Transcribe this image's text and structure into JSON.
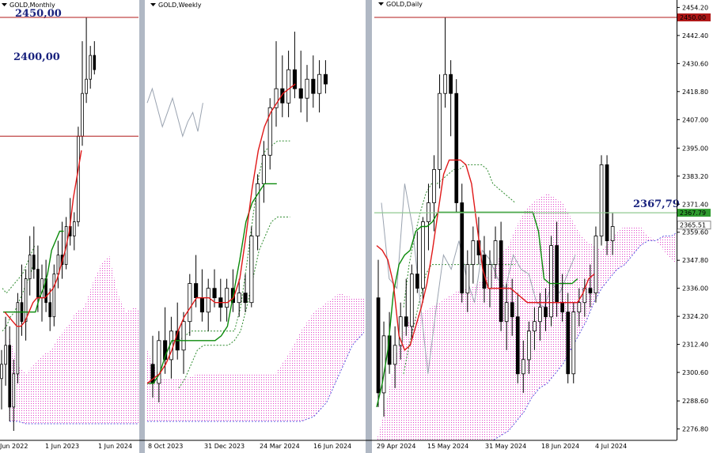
{
  "chart_data": [
    {
      "type": "candlestick",
      "title": "GOLD,Monthly",
      "x_ticks": [
        "Jun 2022",
        "1 Jun 2023",
        "1 Jun 2024"
      ],
      "ylim": [
        2272,
        2456
      ],
      "levels": [
        {
          "label": "2450,00",
          "value": 2450
        },
        {
          "label": "2400,00",
          "value": 2400
        }
      ],
      "candles": [
        {
          "o": 2298,
          "h": 2310,
          "l": 2285,
          "c": 2304
        },
        {
          "o": 2304,
          "h": 2324,
          "l": 2295,
          "c": 2312
        },
        {
          "o": 2312,
          "h": 2320,
          "l": 2280,
          "c": 2286
        },
        {
          "o": 2286,
          "h": 2306,
          "l": 2276,
          "c": 2300
        },
        {
          "o": 2300,
          "h": 2334,
          "l": 2296,
          "c": 2330
        },
        {
          "o": 2330,
          "h": 2346,
          "l": 2316,
          "c": 2322
        },
        {
          "o": 2322,
          "h": 2344,
          "l": 2314,
          "c": 2340
        },
        {
          "o": 2340,
          "h": 2358,
          "l": 2333,
          "c": 2350
        },
        {
          "o": 2350,
          "h": 2362,
          "l": 2340,
          "c": 2344
        },
        {
          "o": 2344,
          "h": 2354,
          "l": 2326,
          "c": 2332
        },
        {
          "o": 2332,
          "h": 2346,
          "l": 2322,
          "c": 2340
        },
        {
          "o": 2340,
          "h": 2348,
          "l": 2326,
          "c": 2330
        },
        {
          "o": 2330,
          "h": 2336,
          "l": 2318,
          "c": 2324
        },
        {
          "o": 2324,
          "h": 2346,
          "l": 2320,
          "c": 2342
        },
        {
          "o": 2342,
          "h": 2356,
          "l": 2336,
          "c": 2350
        },
        {
          "o": 2350,
          "h": 2364,
          "l": 2340,
          "c": 2346
        },
        {
          "o": 2346,
          "h": 2366,
          "l": 2344,
          "c": 2362
        },
        {
          "o": 2362,
          "h": 2374,
          "l": 2354,
          "c": 2358
        },
        {
          "o": 2358,
          "h": 2368,
          "l": 2352,
          "c": 2364
        },
        {
          "o": 2364,
          "h": 2404,
          "l": 2362,
          "c": 2400
        },
        {
          "o": 2400,
          "h": 2440,
          "l": 2396,
          "c": 2418
        },
        {
          "o": 2418,
          "h": 2450,
          "l": 2414,
          "c": 2424
        },
        {
          "o": 2424,
          "h": 2438,
          "l": 2420,
          "c": 2434
        },
        {
          "o": 2434,
          "h": 2440,
          "l": 2426,
          "c": 2428
        }
      ],
      "tenkan": [
        2326,
        2324,
        2322,
        2320,
        2320,
        2322,
        2326,
        2330,
        2332,
        2332,
        2332,
        2334,
        2336,
        2340,
        2346,
        2352,
        2360,
        2374,
        2384,
        2394
      ],
      "kijun": [
        2326,
        2326,
        2326,
        2326,
        2326,
        2326,
        2326,
        2326,
        2326,
        2332,
        2336,
        2342,
        2352,
        2356,
        2360,
        2360
      ],
      "chikou": [
        2360,
        2370,
        2380,
        2374,
        2364,
        2350,
        2346,
        2350,
        2342,
        2344,
        2340,
        2346,
        2350,
        2352,
        2346
      ],
      "lower_band": [
        2318,
        2320,
        2324,
        2326,
        2330,
        2334,
        2338,
        2342,
        2348
      ],
      "upper_band": [
        2336,
        2334,
        2336,
        2338,
        2340,
        2342,
        2346,
        2350,
        2354
      ],
      "cloud_top": [
        2316,
        2304,
        2300,
        2304,
        2308,
        2310,
        2316,
        2320,
        2326,
        2328,
        2338,
        2346,
        2350,
        2334,
        2326,
        2328,
        2326
      ],
      "cloud_bottom": [
        2280,
        2280,
        2279,
        2279,
        2279,
        2279,
        2279,
        2279,
        2279,
        2279,
        2279,
        2279,
        2279,
        2279,
        2279,
        2279,
        2279
      ]
    },
    {
      "type": "candlestick",
      "title": "GOLD,Weekly",
      "x_ticks": [
        "8 Oct 2023",
        "31 Dec 2023",
        "24 Mar 2024",
        "16 Jun 2024"
      ],
      "ylim": [
        2272,
        2456
      ],
      "candles": [
        {
          "o": 2304,
          "h": 2316,
          "l": 2290,
          "c": 2296
        },
        {
          "o": 2296,
          "h": 2318,
          "l": 2288,
          "c": 2314
        },
        {
          "o": 2314,
          "h": 2328,
          "l": 2300,
          "c": 2306
        },
        {
          "o": 2306,
          "h": 2324,
          "l": 2298,
          "c": 2318
        },
        {
          "o": 2318,
          "h": 2330,
          "l": 2306,
          "c": 2310
        },
        {
          "o": 2310,
          "h": 2326,
          "l": 2300,
          "c": 2322
        },
        {
          "o": 2322,
          "h": 2342,
          "l": 2316,
          "c": 2338
        },
        {
          "o": 2338,
          "h": 2350,
          "l": 2328,
          "c": 2332
        },
        {
          "o": 2332,
          "h": 2344,
          "l": 2322,
          "c": 2326
        },
        {
          "o": 2326,
          "h": 2340,
          "l": 2318,
          "c": 2336
        },
        {
          "o": 2336,
          "h": 2344,
          "l": 2328,
          "c": 2332
        },
        {
          "o": 2332,
          "h": 2340,
          "l": 2322,
          "c": 2328
        },
        {
          "o": 2328,
          "h": 2340,
          "l": 2322,
          "c": 2336
        },
        {
          "o": 2336,
          "h": 2344,
          "l": 2326,
          "c": 2330
        },
        {
          "o": 2330,
          "h": 2340,
          "l": 2324,
          "c": 2334
        },
        {
          "o": 2334,
          "h": 2342,
          "l": 2326,
          "c": 2330
        },
        {
          "o": 2330,
          "h": 2362,
          "l": 2328,
          "c": 2358
        },
        {
          "o": 2358,
          "h": 2384,
          "l": 2352,
          "c": 2380
        },
        {
          "o": 2380,
          "h": 2398,
          "l": 2372,
          "c": 2392
        },
        {
          "o": 2392,
          "h": 2416,
          "l": 2386,
          "c": 2412
        },
        {
          "o": 2412,
          "h": 2440,
          "l": 2404,
          "c": 2420
        },
        {
          "o": 2420,
          "h": 2434,
          "l": 2408,
          "c": 2414
        },
        {
          "o": 2414,
          "h": 2436,
          "l": 2408,
          "c": 2428
        },
        {
          "o": 2428,
          "h": 2444,
          "l": 2416,
          "c": 2420
        },
        {
          "o": 2420,
          "h": 2436,
          "l": 2410,
          "c": 2416
        },
        {
          "o": 2416,
          "h": 2430,
          "l": 2406,
          "c": 2424
        },
        {
          "o": 2424,
          "h": 2434,
          "l": 2412,
          "c": 2418
        },
        {
          "o": 2418,
          "h": 2432,
          "l": 2410,
          "c": 2426
        },
        {
          "o": 2426,
          "h": 2432,
          "l": 2418,
          "c": 2422
        }
      ],
      "tenkan": [
        2296,
        2298,
        2300,
        2304,
        2310,
        2318,
        2324,
        2328,
        2332,
        2332,
        2332,
        2330,
        2330,
        2330,
        2332,
        2340,
        2358,
        2378,
        2394,
        2404,
        2410,
        2414,
        2418,
        2420,
        2422
      ],
      "kijun": [
        2296,
        2296,
        2300,
        2308,
        2314,
        2314,
        2314,
        2314,
        2314,
        2314,
        2314,
        2314,
        2316,
        2320,
        2334,
        2348,
        2364,
        2372,
        2376,
        2380,
        2380,
        2380
      ],
      "chikou": [
        2414,
        2420,
        2412,
        2404,
        2410,
        2416,
        2408,
        2400,
        2406,
        2410,
        2402,
        2414
      ],
      "lower_band": [
        2294,
        2298,
        2304,
        2310,
        2312,
        2312,
        2312,
        2312,
        2312,
        2314,
        2318,
        2328,
        2340,
        2352,
        2358,
        2364,
        2366,
        2366,
        2366
      ],
      "upper_band": [
        2314,
        2316,
        2318,
        2318,
        2318,
        2318,
        2318,
        2318,
        2318,
        2318,
        2328,
        2346,
        2366,
        2384,
        2394,
        2396,
        2398,
        2398,
        2398
      ],
      "cloud_top": [
        2310,
        2298,
        2298,
        2298,
        2300,
        2300,
        2300,
        2300,
        2300,
        2300,
        2300,
        2308,
        2318,
        2326,
        2330,
        2334,
        2332,
        2332
      ],
      "cloud_bottom": [
        2280,
        2280,
        2280,
        2280,
        2280,
        2280,
        2280,
        2280,
        2280,
        2280,
        2280,
        2280,
        2280,
        2282,
        2288,
        2300,
        2312,
        2318
      ]
    },
    {
      "type": "candlestick",
      "title": "GOLD,Daily",
      "x_ticks": [
        "29 Apr 2024",
        "15 May 2024",
        "31 May 2024",
        "18 Jun 2024",
        "4 Jul 2024"
      ],
      "y_ticks": [
        "2454.20",
        "2442.40",
        "2430.60",
        "2418.80",
        "2407.00",
        "2395.00",
        "2383.20",
        "2371.40",
        "2359.60",
        "2347.80",
        "2336.00",
        "2324.20",
        "2312.40",
        "2300.60",
        "2288.60",
        "2276.80"
      ],
      "ylim": [
        2272,
        2456
      ],
      "levels": [
        {
          "label": "2450.00",
          "value": 2450
        },
        {
          "label": "2367,79",
          "value": 2367.79
        }
      ],
      "price_tags": [
        "2367.79",
        "2365.51"
      ],
      "candles": [
        {
          "o": 2332,
          "h": 2348,
          "l": 2286,
          "c": 2292
        },
        {
          "o": 2292,
          "h": 2322,
          "l": 2282,
          "c": 2316
        },
        {
          "o": 2316,
          "h": 2326,
          "l": 2300,
          "c": 2304
        },
        {
          "o": 2304,
          "h": 2320,
          "l": 2294,
          "c": 2312
        },
        {
          "o": 2312,
          "h": 2330,
          "l": 2306,
          "c": 2324
        },
        {
          "o": 2324,
          "h": 2340,
          "l": 2316,
          "c": 2320
        },
        {
          "o": 2320,
          "h": 2346,
          "l": 2314,
          "c": 2342
        },
        {
          "o": 2342,
          "h": 2360,
          "l": 2334,
          "c": 2336
        },
        {
          "o": 2336,
          "h": 2366,
          "l": 2330,
          "c": 2364
        },
        {
          "o": 2364,
          "h": 2380,
          "l": 2352,
          "c": 2372
        },
        {
          "o": 2372,
          "h": 2392,
          "l": 2360,
          "c": 2386
        },
        {
          "o": 2386,
          "h": 2426,
          "l": 2378,
          "c": 2418
        },
        {
          "o": 2418,
          "h": 2450,
          "l": 2412,
          "c": 2426
        },
        {
          "o": 2426,
          "h": 2432,
          "l": 2400,
          "c": 2418
        },
        {
          "o": 2418,
          "h": 2424,
          "l": 2368,
          "c": 2372
        },
        {
          "o": 2372,
          "h": 2380,
          "l": 2330,
          "c": 2334
        },
        {
          "o": 2334,
          "h": 2352,
          "l": 2326,
          "c": 2346
        },
        {
          "o": 2346,
          "h": 2362,
          "l": 2338,
          "c": 2356
        },
        {
          "o": 2356,
          "h": 2366,
          "l": 2346,
          "c": 2350
        },
        {
          "o": 2350,
          "h": 2358,
          "l": 2330,
          "c": 2336
        },
        {
          "o": 2336,
          "h": 2352,
          "l": 2328,
          "c": 2346
        },
        {
          "o": 2346,
          "h": 2362,
          "l": 2340,
          "c": 2356
        },
        {
          "o": 2356,
          "h": 2364,
          "l": 2318,
          "c": 2322
        },
        {
          "o": 2322,
          "h": 2338,
          "l": 2310,
          "c": 2330
        },
        {
          "o": 2330,
          "h": 2340,
          "l": 2316,
          "c": 2324
        },
        {
          "o": 2324,
          "h": 2334,
          "l": 2296,
          "c": 2300
        },
        {
          "o": 2300,
          "h": 2314,
          "l": 2292,
          "c": 2306
        },
        {
          "o": 2306,
          "h": 2322,
          "l": 2300,
          "c": 2318
        },
        {
          "o": 2318,
          "h": 2328,
          "l": 2310,
          "c": 2322
        },
        {
          "o": 2322,
          "h": 2334,
          "l": 2314,
          "c": 2328
        },
        {
          "o": 2328,
          "h": 2336,
          "l": 2318,
          "c": 2324
        },
        {
          "o": 2324,
          "h": 2358,
          "l": 2320,
          "c": 2354
        },
        {
          "o": 2354,
          "h": 2364,
          "l": 2324,
          "c": 2330
        },
        {
          "o": 2330,
          "h": 2342,
          "l": 2322,
          "c": 2326
        },
        {
          "o": 2326,
          "h": 2334,
          "l": 2296,
          "c": 2300
        },
        {
          "o": 2300,
          "h": 2330,
          "l": 2296,
          "c": 2326
        },
        {
          "o": 2326,
          "h": 2336,
          "l": 2320,
          "c": 2330
        },
        {
          "o": 2330,
          "h": 2340,
          "l": 2324,
          "c": 2336
        },
        {
          "o": 2336,
          "h": 2346,
          "l": 2328,
          "c": 2334
        },
        {
          "o": 2334,
          "h": 2362,
          "l": 2330,
          "c": 2358
        },
        {
          "o": 2358,
          "h": 2392,
          "l": 2354,
          "c": 2388
        },
        {
          "o": 2388,
          "h": 2392,
          "l": 2350,
          "c": 2356
        },
        {
          "o": 2356,
          "h": 2368,
          "l": 2350,
          "c": 2362
        }
      ],
      "tenkan": [
        2354,
        2352,
        2348,
        2338,
        2316,
        2310,
        2312,
        2320,
        2328,
        2338,
        2352,
        2368,
        2384,
        2390,
        2390,
        2390,
        2388,
        2380,
        2362,
        2344,
        2336,
        2336,
        2336,
        2336,
        2336,
        2334,
        2332,
        2330,
        2330,
        2330,
        2330,
        2330,
        2330,
        2330,
        2330,
        2330,
        2330,
        2334,
        2340,
        2342
      ],
      "kijun": [
        2286,
        2296,
        2310,
        2334,
        2346,
        2350,
        2352,
        2360,
        2362,
        2362,
        2364,
        2368,
        2368,
        2368,
        2368,
        2368,
        2368,
        2368,
        2368,
        2368,
        2368,
        2368,
        2368,
        2368,
        2368,
        2368,
        2368,
        2368,
        2368,
        2360,
        2340,
        2338,
        2338,
        2338,
        2338,
        2338,
        2340
      ],
      "chikou": [
        2372,
        2340,
        2336,
        2380,
        2362,
        2330,
        2300,
        2326,
        2350,
        2344,
        2356,
        2340,
        2330,
        2352,
        2348,
        2340,
        2336,
        2350,
        2344,
        2342,
        2330,
        2328,
        2338,
        2334,
        2342,
        2350
      ],
      "lower_band": [
        2300,
        2312,
        2322,
        2332,
        2342,
        2346,
        2346,
        2346,
        2346,
        2346,
        2346,
        2346,
        2346,
        2346,
        2346,
        2346,
        2346,
        2346,
        2346,
        2346,
        2346
      ],
      "upper_band": [
        2328,
        2346,
        2358,
        2368,
        2376,
        2380,
        2380,
        2382,
        2384,
        2386,
        2386,
        2388,
        2388,
        2388,
        2388,
        2386,
        2380,
        2378,
        2376,
        2374,
        2372
      ],
      "cloud_top": [
        2272,
        2284,
        2300,
        2314,
        2322,
        2324,
        2326,
        2328,
        2330,
        2332,
        2334,
        2336,
        2336,
        2338,
        2340,
        2344,
        2350,
        2354,
        2362,
        2368,
        2372,
        2374,
        2376,
        2374,
        2372,
        2366,
        2360,
        2356,
        2354,
        2352,
        2356,
        2360,
        2362,
        2362,
        2362,
        2358,
        2356,
        2352,
        2348,
        2346
      ],
      "cloud_bottom": [
        2272,
        2272,
        2272,
        2272,
        2272,
        2272,
        2272,
        2272,
        2272,
        2272,
        2272,
        2272,
        2272,
        2272,
        2272,
        2272,
        2274,
        2276,
        2280,
        2284,
        2290,
        2294,
        2296,
        2300,
        2304,
        2310,
        2316,
        2322,
        2330,
        2336,
        2340,
        2344,
        2346,
        2350,
        2354,
        2356,
        2356,
        2358,
        2358,
        2360
      ]
    }
  ]
}
